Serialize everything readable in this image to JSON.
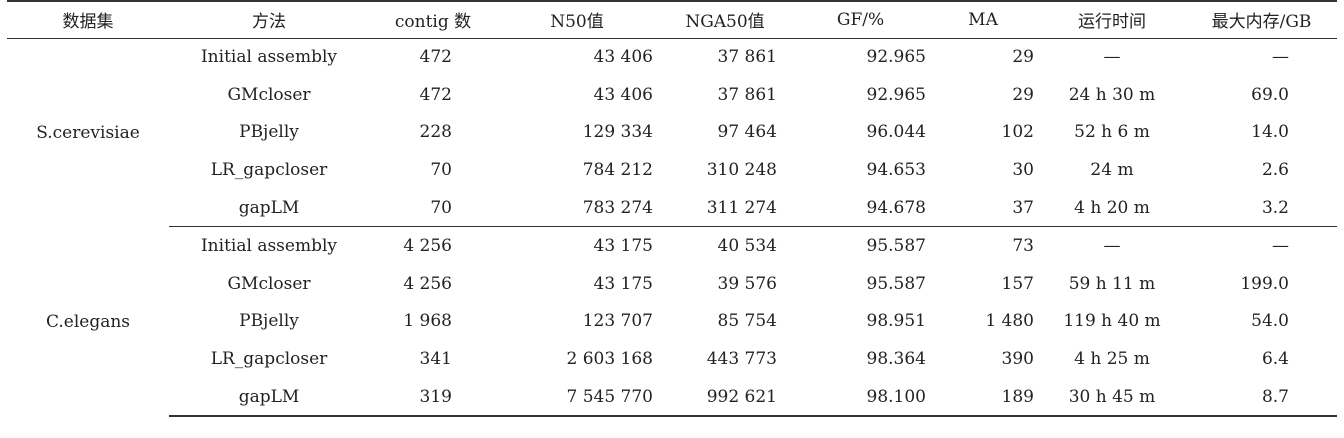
{
  "table": {
    "headers": [
      "数据集",
      "方法",
      "contig 数",
      "N50值",
      "NGA50值",
      "GF/%",
      "MA",
      "运行时间",
      "最大内存/GB"
    ],
    "groups": [
      {
        "dataset": "S.cerevisiae",
        "rows": [
          {
            "method": "Initial assembly",
            "contig": "472",
            "n50": "43 406",
            "nga50": "37 861",
            "gf": "92.965",
            "ma": "29",
            "runtime": "—",
            "memory": "—"
          },
          {
            "method": "GMcloser",
            "contig": "472",
            "n50": "43 406",
            "nga50": "37 861",
            "gf": "92.965",
            "ma": "29",
            "runtime": "24 h 30 m",
            "memory": "69.0"
          },
          {
            "method": "PBjelly",
            "contig": "228",
            "n50": "129 334",
            "nga50": "97 464",
            "gf": "96.044",
            "ma": "102",
            "runtime": "52 h 6 m",
            "memory": "14.0"
          },
          {
            "method": "LR_gapcloser",
            "contig": "70",
            "n50": "784 212",
            "nga50": "310 248",
            "gf": "94.653",
            "ma": "30",
            "runtime": "24 m",
            "memory": "2.6"
          },
          {
            "method": "gapLM",
            "contig": "70",
            "n50": "783 274",
            "nga50": "311 274",
            "gf": "94.678",
            "ma": "37",
            "runtime": "4 h 20 m",
            "memory": "3.2"
          }
        ]
      },
      {
        "dataset": "C.elegans",
        "rows": [
          {
            "method": "Initial assembly",
            "contig": "4 256",
            "n50": "43 175",
            "nga50": "40 534",
            "gf": "95.587",
            "ma": "73",
            "runtime": "—",
            "memory": "—"
          },
          {
            "method": "GMcloser",
            "contig": "4 256",
            "n50": "43 175",
            "nga50": "39 576",
            "gf": "95.587",
            "ma": "157",
            "runtime": "59 h 11 m",
            "memory": "199.0"
          },
          {
            "method": "PBjelly",
            "contig": "1 968",
            "n50": "123 707",
            "nga50": "85 754",
            "gf": "98.951",
            "ma": "1 480",
            "runtime": "119 h 40 m",
            "memory": "54.0"
          },
          {
            "method": "LR_gapcloser",
            "contig": "341",
            "n50": "2 603 168",
            "nga50": "443 773",
            "gf": "98.364",
            "ma": "390",
            "runtime": "4 h 25 m",
            "memory": "6.4"
          },
          {
            "method": "gapLM",
            "contig": "319",
            "n50": "7 545 770",
            "nga50": "992 621",
            "gf": "98.100",
            "ma": "189",
            "runtime": "30 h 45 m",
            "memory": "8.7"
          }
        ]
      }
    ]
  }
}
